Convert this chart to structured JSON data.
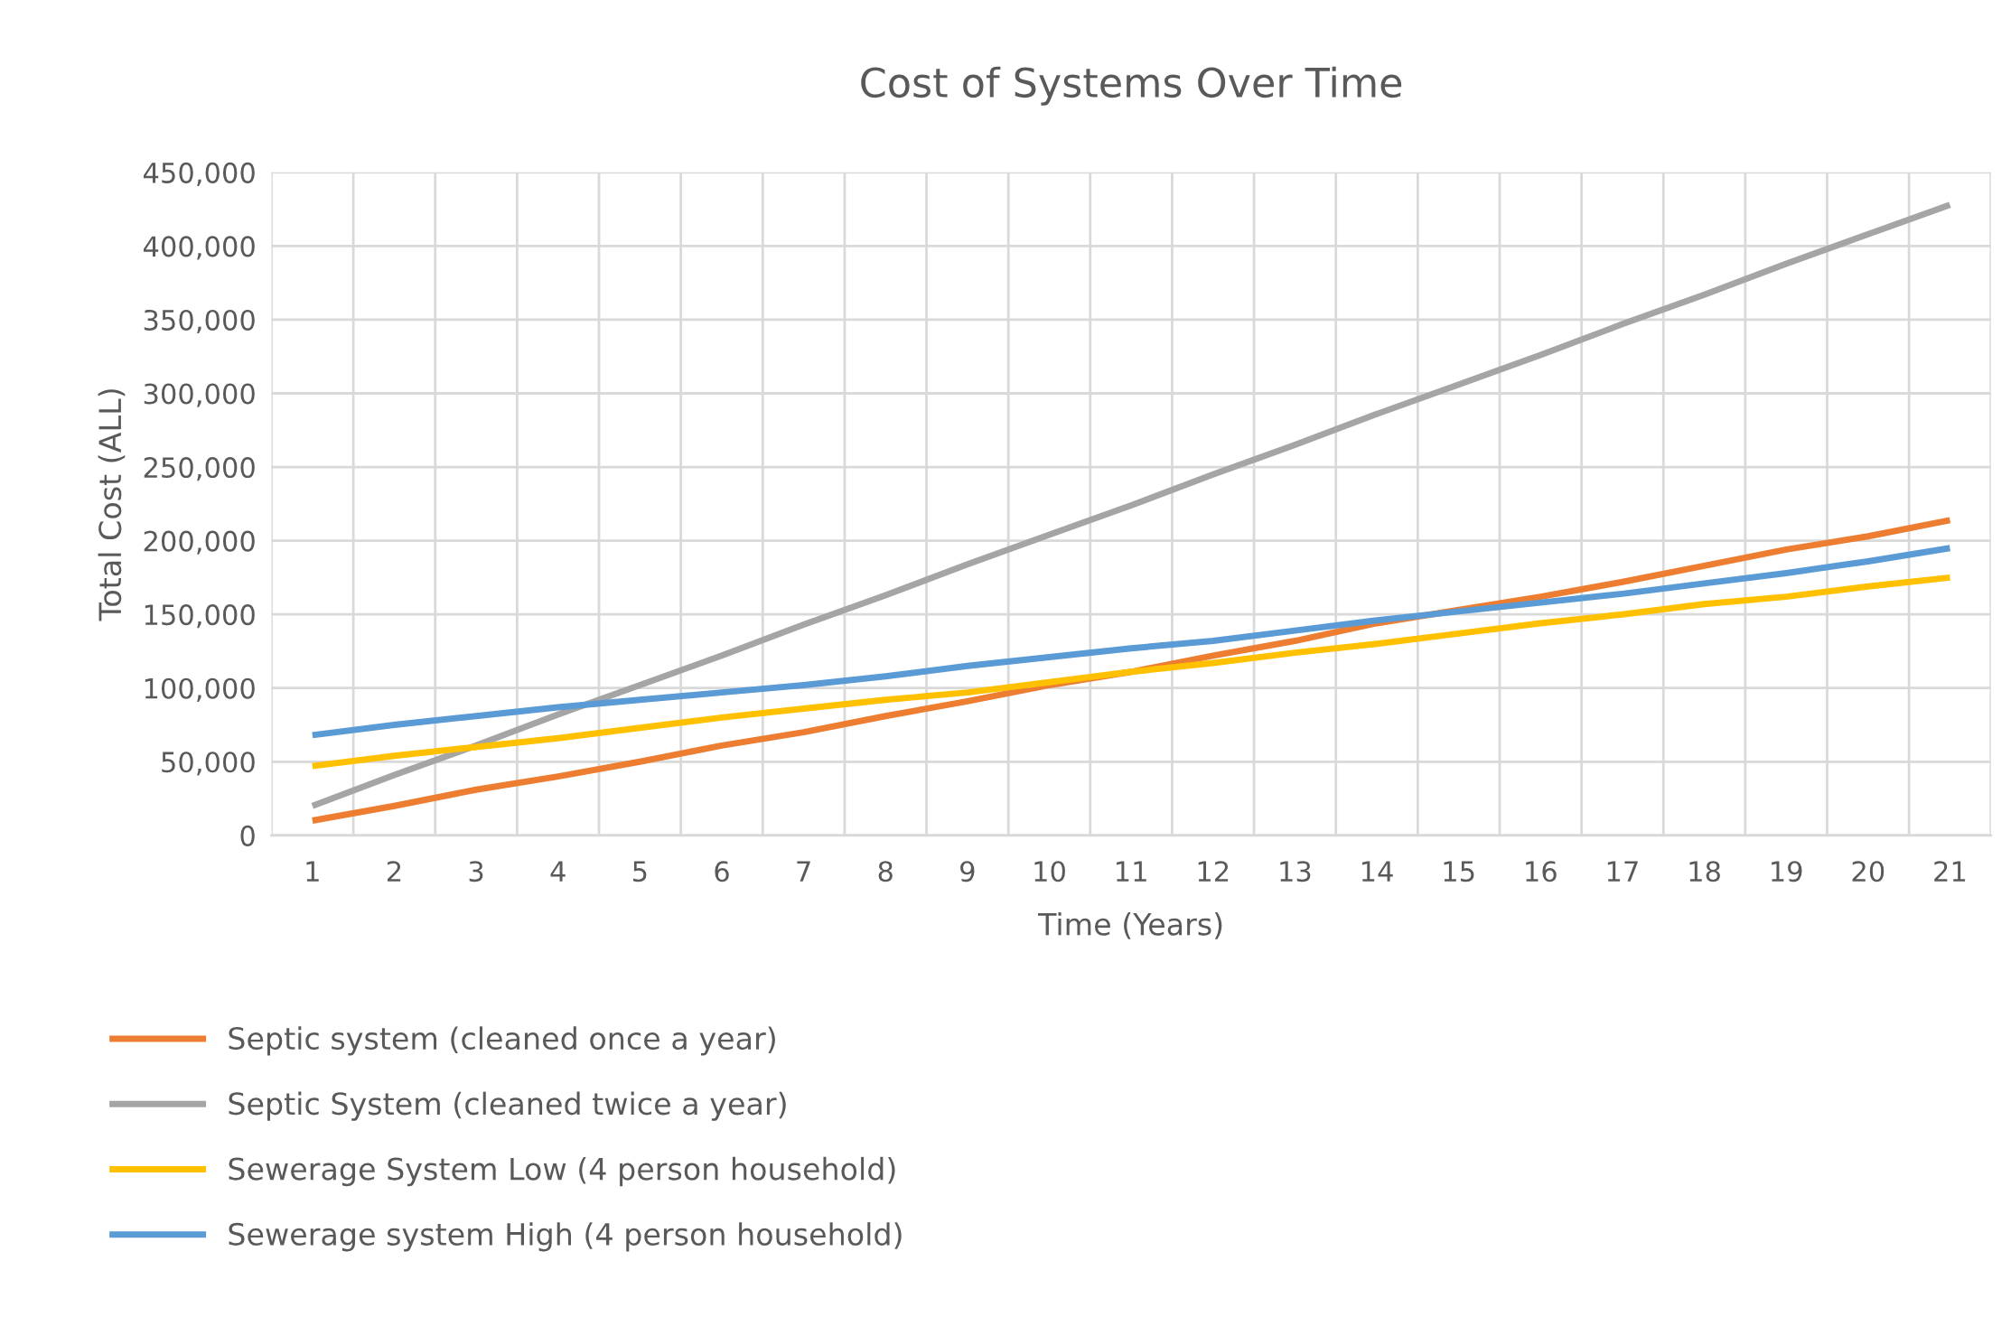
{
  "chart_data": {
    "type": "line",
    "title": "Cost of Systems Over Time",
    "xlabel": "Time (Years)",
    "ylabel": "Total Cost (ALL)",
    "categories": [
      "1",
      "2",
      "3",
      "4",
      "5",
      "6",
      "7",
      "8",
      "9",
      "10",
      "11",
      "12",
      "13",
      "14",
      "15",
      "16",
      "17",
      "18",
      "19",
      "20",
      "21"
    ],
    "series": [
      {
        "name": "Septic system (cleaned once a year)",
        "color": "#ed7d31",
        "values": [
          10000,
          20000,
          31000,
          40000,
          50000,
          61000,
          70000,
          81000,
          91000,
          102000,
          111000,
          122000,
          132000,
          144000,
          153000,
          162000,
          172000,
          183000,
          194000,
          203000,
          214000
        ]
      },
      {
        "name": "Septic System (cleaned twice a year)",
        "color": "#a5a5a5",
        "values": [
          20000,
          41000,
          61000,
          82000,
          102000,
          122000,
          143000,
          163000,
          184000,
          204000,
          224000,
          245000,
          265000,
          286000,
          306000,
          326000,
          347000,
          367000,
          388000,
          408000,
          428000
        ]
      },
      {
        "name": "Sewerage System Low (4 person household)",
        "color": "#ffc000",
        "values": [
          47000,
          54000,
          60000,
          66000,
          73000,
          80000,
          86000,
          92000,
          97000,
          104000,
          111000,
          117000,
          124000,
          130000,
          137000,
          144000,
          150000,
          157000,
          162000,
          169000,
          175000
        ]
      },
      {
        "name": "Sewerage system High (4 person household)",
        "color": "#5b9bd5",
        "values": [
          68000,
          75000,
          81000,
          87000,
          92000,
          97000,
          102000,
          108000,
          115000,
          121000,
          127000,
          132000,
          139000,
          146000,
          152000,
          158000,
          164000,
          171000,
          178000,
          186000,
          195000
        ]
      }
    ],
    "ylim": [
      0,
      450000
    ],
    "yticks": [
      {
        "value": 0,
        "label": "0"
      },
      {
        "value": 50000,
        "label": "50,000"
      },
      {
        "value": 100000,
        "label": "100,000"
      },
      {
        "value": 150000,
        "label": "150,000"
      },
      {
        "value": 200000,
        "label": "200,000"
      },
      {
        "value": 250000,
        "label": "250,000"
      },
      {
        "value": 300000,
        "label": "300,000"
      },
      {
        "value": 350000,
        "label": "350,000"
      },
      {
        "value": 400000,
        "label": "400,000"
      },
      {
        "value": 450000,
        "label": "450,000"
      }
    ],
    "grid": true,
    "legend": "bottom",
    "marker": "none",
    "line_style": "solid"
  }
}
